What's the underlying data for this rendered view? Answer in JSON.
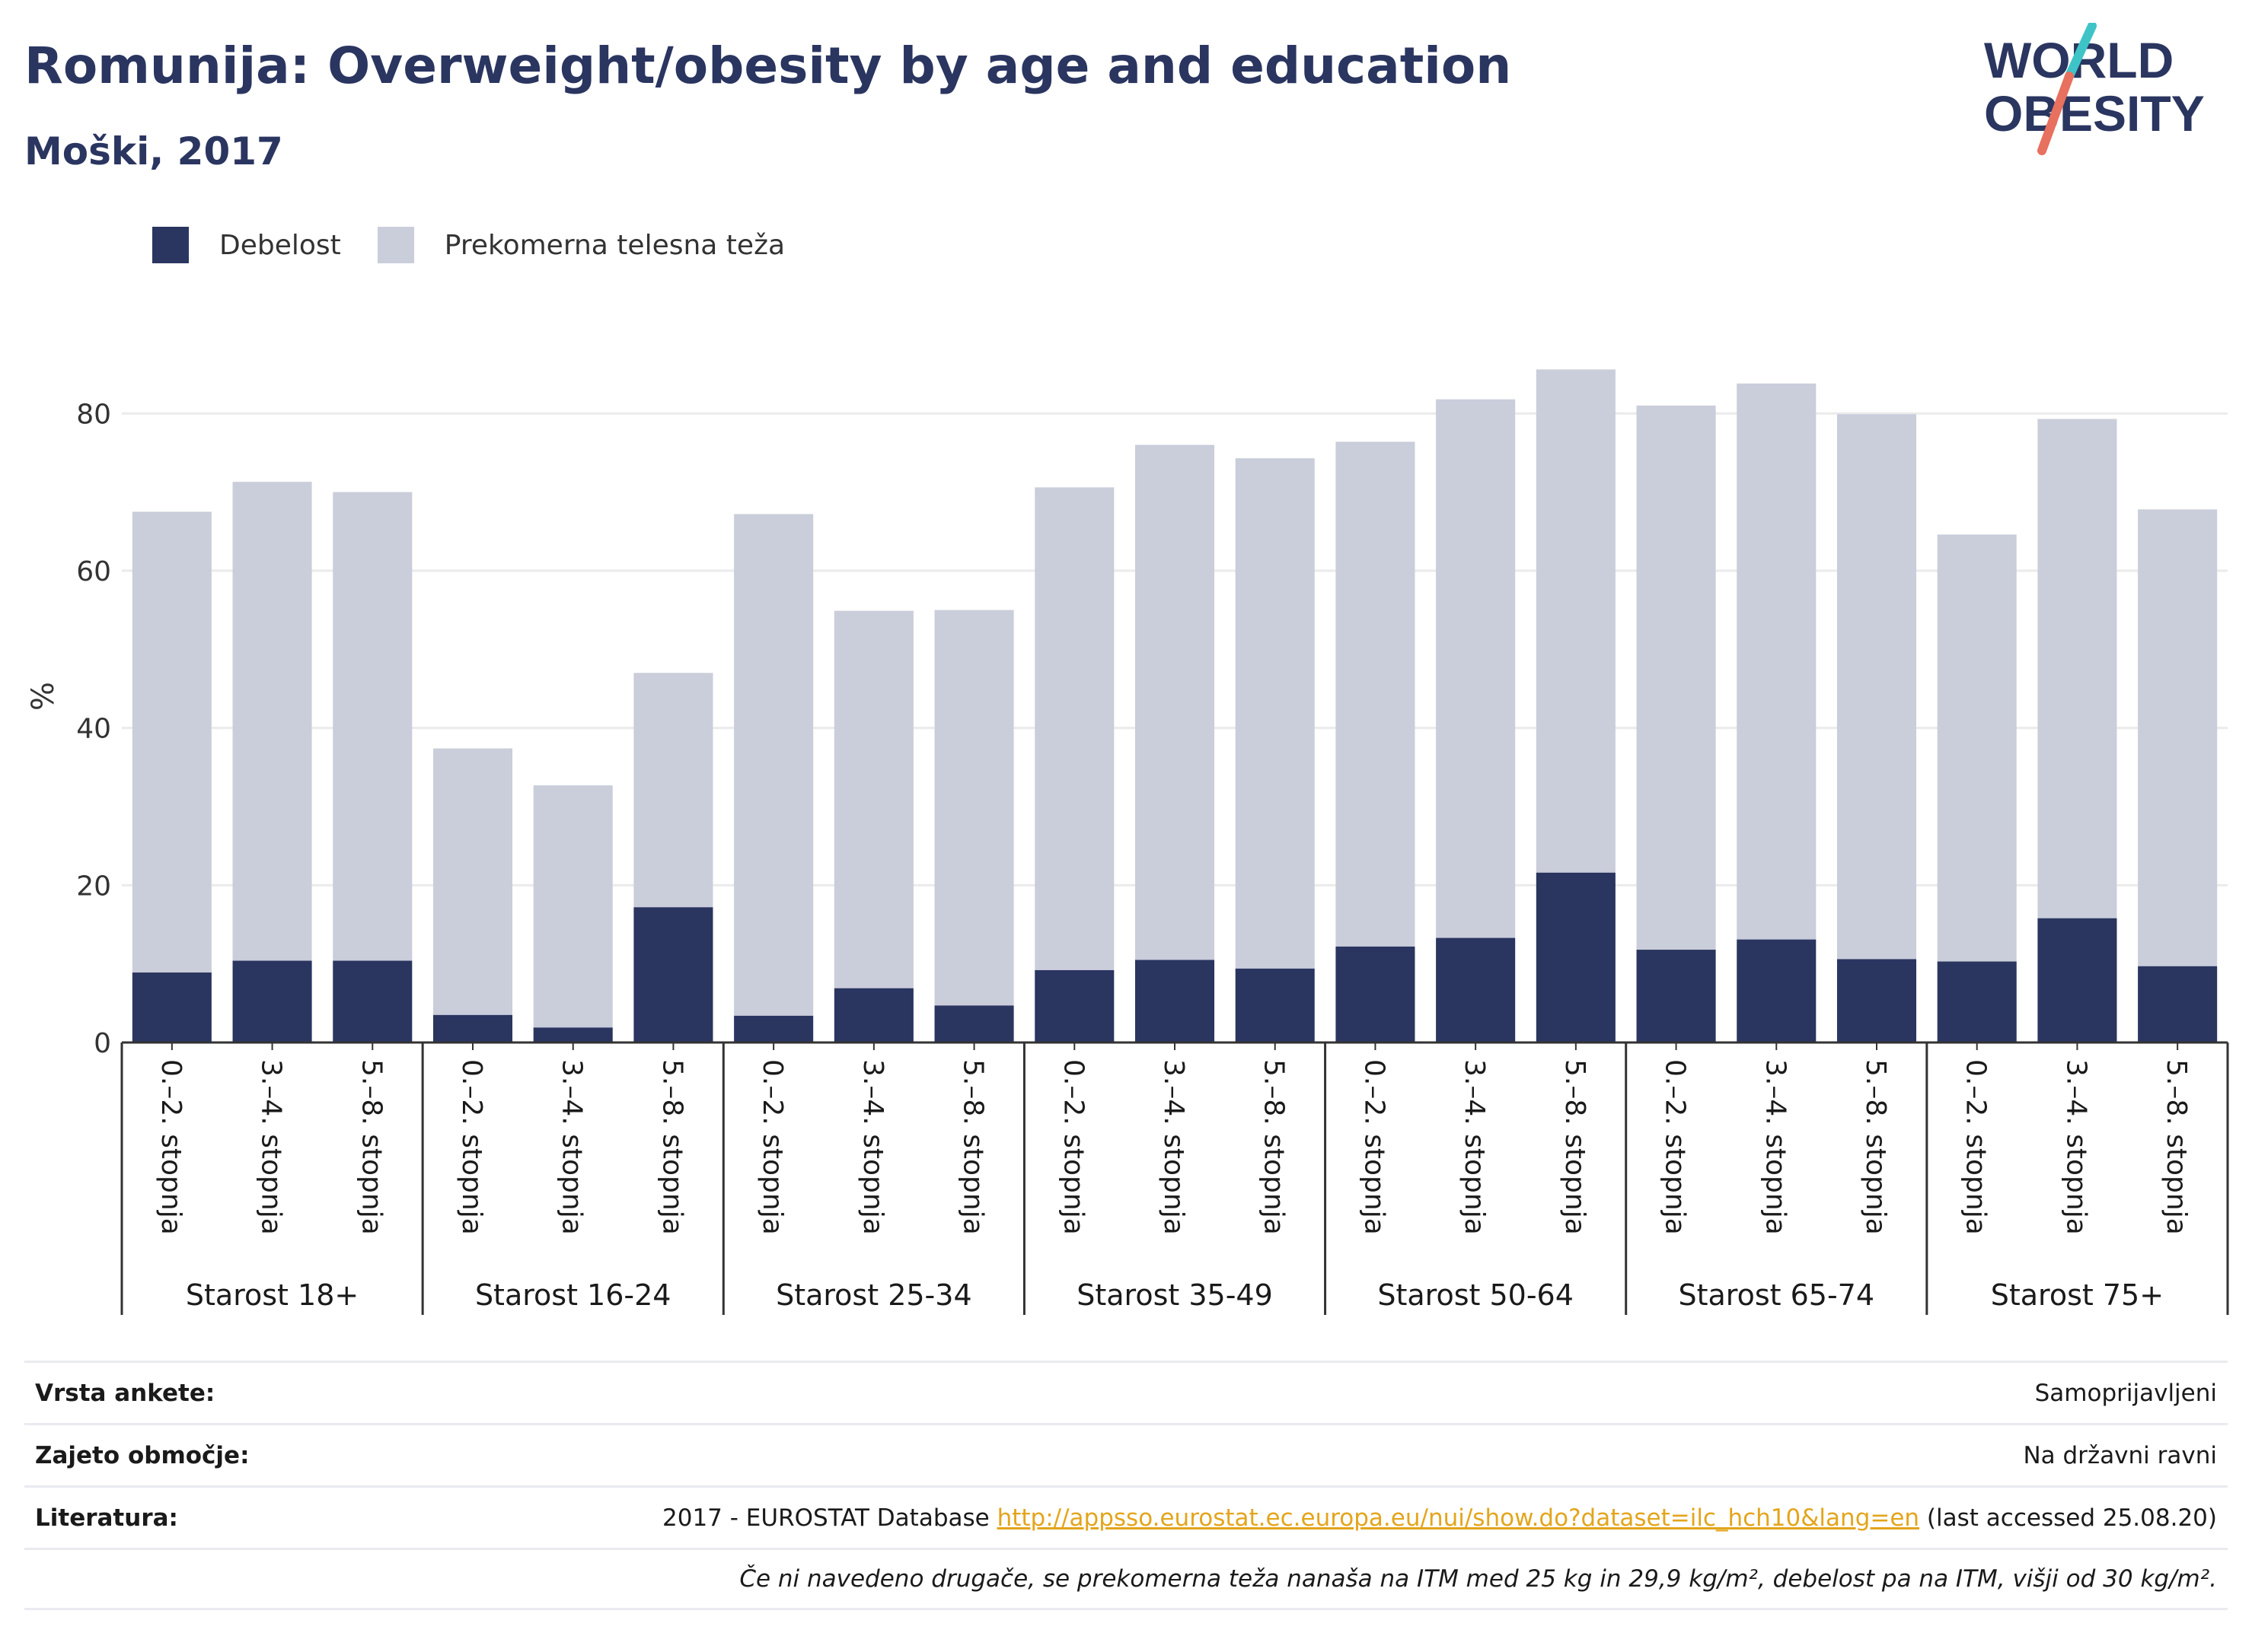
{
  "header": {
    "title": "Romunija: Overweight/obesity by age and education",
    "subtitle": "Moški, 2017"
  },
  "logo": {
    "line1": "WORLD",
    "line2": "OBESITY",
    "colors": {
      "navy": "#2a3560",
      "teal": "#3ec4c7",
      "coral": "#e8705e"
    }
  },
  "colors": {
    "obesity": "#2a3560",
    "overweight": "#cacdda",
    "grid": "#ebebeb",
    "axis": "#333333"
  },
  "chart_data": {
    "type": "bar",
    "stacked": true,
    "ylabel": "%",
    "ylim": [
      0,
      90
    ],
    "yticks": [
      0,
      20,
      40,
      60,
      80
    ],
    "grid": true,
    "legend_position": "top-left",
    "groups": [
      "Starost 18+",
      "Starost 16-24",
      "Starost 25-34",
      "Starost 35-49",
      "Starost 50-64",
      "Starost 65-74",
      "Starost 75+"
    ],
    "subcategories": [
      "0.–2. stopnja",
      "3.–4. stopnja",
      "5.–8. stopnja"
    ],
    "series": [
      {
        "name": "Debelost",
        "values": [
          8.9,
          10.4,
          10.4,
          3.5,
          1.9,
          17.2,
          3.4,
          6.9,
          4.7,
          9.2,
          10.5,
          9.4,
          12.2,
          13.3,
          21.6,
          11.8,
          13.1,
          10.6,
          10.3,
          15.8,
          9.7
        ]
      },
      {
        "name": "Prekomerna telesna teža",
        "values": [
          58.6,
          60.9,
          59.6,
          33.9,
          30.8,
          29.8,
          63.8,
          48.0,
          50.3,
          61.4,
          65.5,
          64.9,
          64.2,
          68.5,
          64.0,
          69.2,
          70.7,
          69.3,
          54.3,
          63.5,
          58.1
        ]
      }
    ]
  },
  "info": {
    "survey_label": "Vrsta ankete:",
    "survey_value": "Samoprijavljeni",
    "coverage_label": "Zajeto območje:",
    "coverage_value": "Na državni ravni",
    "reference_label": "Literatura:",
    "reference_prefix": "2017 - EUROSTAT Database",
    "reference_link": "http://appsso.eurostat.ec.europa.eu/nui/show.do?dataset=ilc_hch10&lang=en",
    "reference_suffix": "(last accessed 25.08.20)",
    "note": "Če ni navedeno drugače, se prekomerna teža nanaša na ITM med 25 kg in 29,9 kg/m², debelost pa na ITM, višji od 30 kg/m²."
  }
}
